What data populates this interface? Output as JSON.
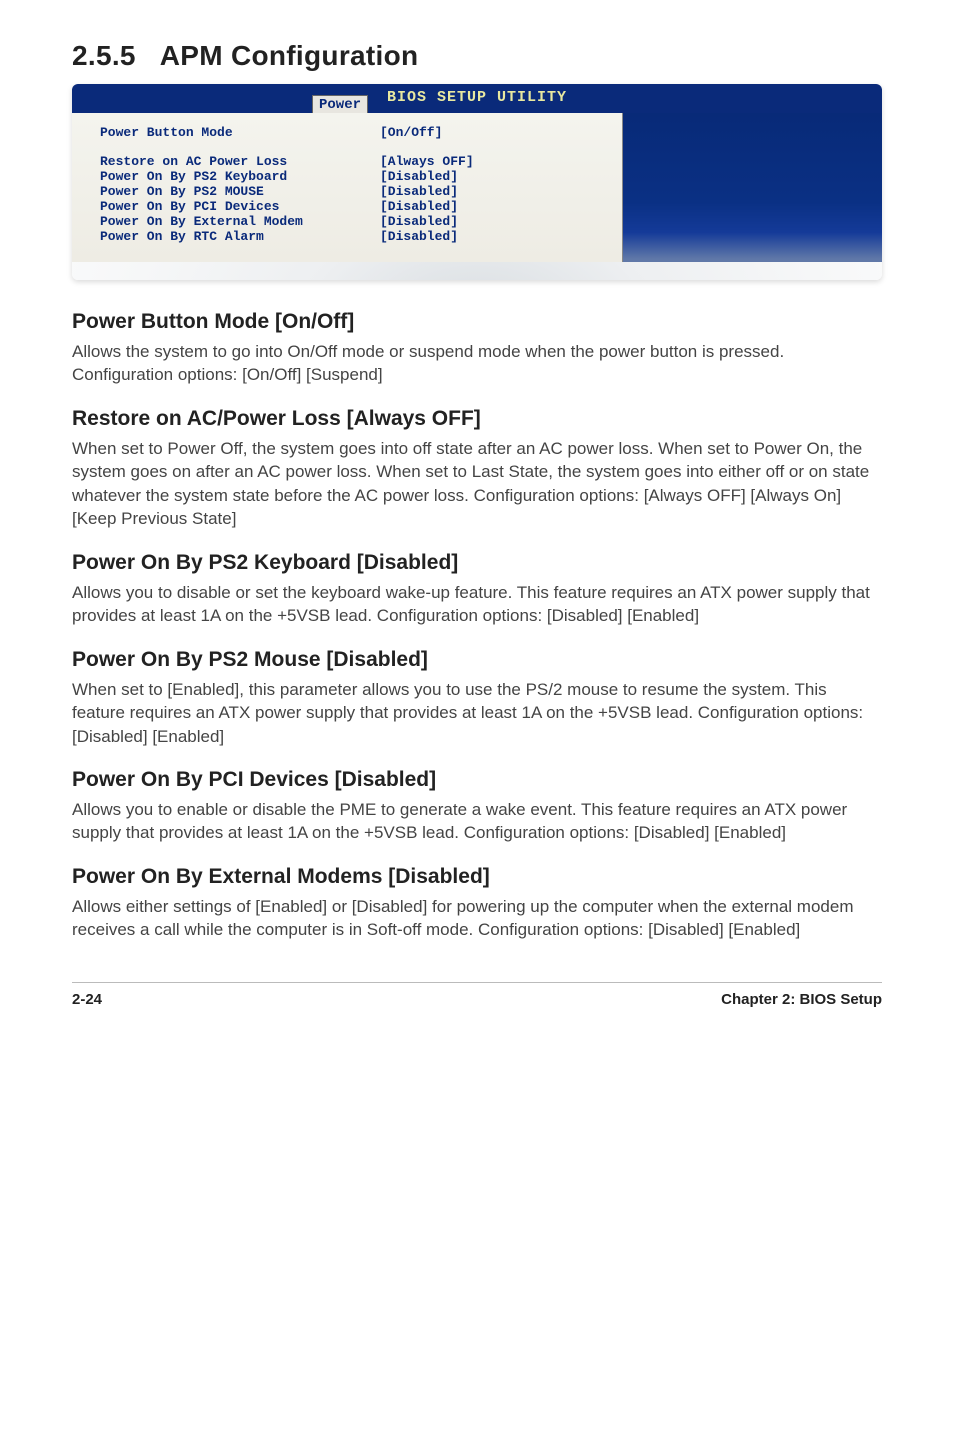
{
  "section": {
    "number": "2.5.5",
    "title": "APM Configuration"
  },
  "bios": {
    "utility_title": "BIOS SETUP UTILITY",
    "tab_label": "Power",
    "right_footer": "",
    "rows": [
      {
        "k": "Power Button Mode",
        "v": "[On/Off]"
      }
    ],
    "rows2": [
      {
        "k": "Restore on AC Power Loss",
        "v": "[Always OFF]"
      },
      {
        "k": "Power On By PS2 Keyboard",
        "v": "[Disabled]"
      },
      {
        "k": "Power On By PS2 MOUSE",
        "v": "[Disabled]"
      },
      {
        "k": "Power On By PCI Devices",
        "v": "[Disabled]"
      },
      {
        "k": "Power On By External Modem",
        "v": "[Disabled]"
      },
      {
        "k": "Power On By RTC Alarm",
        "v": "[Disabled]"
      }
    ]
  },
  "subsections": [
    {
      "heading": "Power Button Mode [On/Off]",
      "body": "Allows the system to go into On/Off mode or suspend mode when the power button is pressed. Configuration options: [On/Off] [Suspend]"
    },
    {
      "heading": "Restore on AC/Power Loss [Always OFF]",
      "body": "When set to Power Off, the system goes into off state after an AC power loss. When set to Power On, the system goes on after an AC power loss. When set to Last State, the system goes into either off or on state whatever the system state before the AC power loss. Configuration options: [Always OFF] [Always On] [Keep Previous State]"
    },
    {
      "heading": "Power On By PS2 Keyboard [Disabled]",
      "body": "Allows you to disable or set the keyboard wake-up feature. This feature requires an ATX power supply that provides at least 1A on the +5VSB lead. Configuration options: [Disabled] [Enabled]"
    },
    {
      "heading": "Power On By PS2 Mouse [Disabled]",
      "body": "When set to [Enabled], this parameter allows you to use the PS/2 mouse to resume the system. This feature requires an ATX power supply that provides at least 1A on the +5VSB lead. Configuration options: [Disabled] [Enabled]"
    },
    {
      "heading": "Power On By PCI Devices [Disabled]",
      "body": "Allows you to enable or disable the PME to generate a wake event. This feature requires an ATX power supply that provides at least 1A on the +5VSB lead. Configuration options: [Disabled] [Enabled]"
    },
    {
      "heading": "Power On By External Modems [Disabled]",
      "body": "Allows either settings of [Enabled] or [Disabled] for powering up the computer when the external modem receives a call while the computer is in Soft-off mode. Configuration options: [Disabled] [Enabled]"
    }
  ],
  "footer": {
    "left": "2-24",
    "right": "Chapter 2: BIOS Setup"
  }
}
